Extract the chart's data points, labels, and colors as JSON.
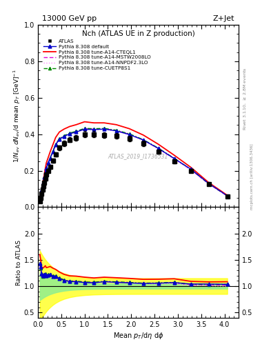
{
  "title": "Nch (ATLAS UE in Z production)",
  "header_left": "13000 GeV pp",
  "header_right": "Z+Jet",
  "watermark": "ATLAS_2019_I1736531",
  "xlabel": "Mean $p_T$/d$\\eta$ d$\\phi$",
  "ylabel_main": "$1/N_{ev}$ $dN_{ev}$/d mean $p_T$ [GeV]$^{-1}$",
  "ylabel_ratio": "Ratio to ATLAS",
  "right_label": "Rivet 3.1.10, $\\geq$ 2.8M events",
  "right_label2": "mcplots.cern.ch [arXiv:1306.3436]",
  "ylim_main": [
    0.0,
    1.0
  ],
  "ylim_ratio": [
    0.4,
    2.5
  ],
  "xlim": [
    0.0,
    4.3
  ],
  "atlas_x": [
    0.04,
    0.06,
    0.08,
    0.1,
    0.12,
    0.14,
    0.16,
    0.18,
    0.22,
    0.26,
    0.32,
    0.38,
    0.46,
    0.56,
    0.68,
    0.82,
    1.0,
    1.2,
    1.42,
    1.68,
    1.96,
    2.26,
    2.58,
    2.92,
    3.28,
    3.66,
    4.06
  ],
  "atlas_y": [
    0.03,
    0.05,
    0.075,
    0.095,
    0.115,
    0.135,
    0.155,
    0.18,
    0.2,
    0.22,
    0.255,
    0.29,
    0.325,
    0.35,
    0.37,
    0.38,
    0.4,
    0.4,
    0.395,
    0.39,
    0.375,
    0.35,
    0.305,
    0.25,
    0.2,
    0.125,
    0.06
  ],
  "default_x": [
    0.04,
    0.06,
    0.08,
    0.1,
    0.12,
    0.14,
    0.16,
    0.18,
    0.22,
    0.26,
    0.32,
    0.38,
    0.46,
    0.56,
    0.68,
    0.82,
    1.0,
    1.2,
    1.42,
    1.68,
    1.96,
    2.26,
    2.58,
    2.92,
    3.28,
    3.66,
    4.06
  ],
  "default_y": [
    0.043,
    0.068,
    0.093,
    0.115,
    0.138,
    0.165,
    0.19,
    0.215,
    0.242,
    0.268,
    0.303,
    0.342,
    0.372,
    0.388,
    0.402,
    0.412,
    0.427,
    0.425,
    0.428,
    0.418,
    0.398,
    0.368,
    0.322,
    0.267,
    0.208,
    0.13,
    0.062
  ],
  "cteq_x": [
    0.04,
    0.06,
    0.08,
    0.1,
    0.12,
    0.14,
    0.16,
    0.18,
    0.22,
    0.26,
    0.32,
    0.38,
    0.46,
    0.56,
    0.68,
    0.82,
    1.0,
    1.2,
    1.42,
    1.68,
    1.96,
    2.26,
    2.58,
    2.92,
    3.28,
    3.66,
    4.06
  ],
  "cteq_y": [
    0.048,
    0.075,
    0.102,
    0.128,
    0.155,
    0.185,
    0.215,
    0.243,
    0.272,
    0.302,
    0.342,
    0.382,
    0.412,
    0.428,
    0.442,
    0.452,
    0.468,
    0.462,
    0.462,
    0.452,
    0.43,
    0.395,
    0.345,
    0.285,
    0.218,
    0.135,
    0.065
  ],
  "mstw_x": [
    0.04,
    0.06,
    0.08,
    0.1,
    0.12,
    0.14,
    0.16,
    0.18,
    0.22,
    0.26,
    0.32,
    0.38,
    0.46,
    0.56,
    0.68,
    0.82,
    1.0,
    1.2,
    1.42,
    1.68,
    1.96,
    2.26,
    2.58,
    2.92,
    3.28,
    3.66,
    4.06
  ],
  "mstw_y": [
    0.042,
    0.066,
    0.091,
    0.112,
    0.136,
    0.162,
    0.19,
    0.215,
    0.242,
    0.268,
    0.304,
    0.344,
    0.374,
    0.39,
    0.405,
    0.415,
    0.43,
    0.428,
    0.43,
    0.42,
    0.4,
    0.368,
    0.322,
    0.266,
    0.205,
    0.128,
    0.061
  ],
  "nnpdf_x": [
    0.04,
    0.06,
    0.08,
    0.1,
    0.12,
    0.14,
    0.16,
    0.18,
    0.22,
    0.26,
    0.32,
    0.38,
    0.46,
    0.56,
    0.68,
    0.82,
    1.0,
    1.2,
    1.42,
    1.68,
    1.96,
    2.26,
    2.58,
    2.92,
    3.28,
    3.66,
    4.06
  ],
  "nnpdf_y": [
    0.041,
    0.064,
    0.089,
    0.11,
    0.133,
    0.159,
    0.187,
    0.212,
    0.239,
    0.265,
    0.3,
    0.34,
    0.37,
    0.386,
    0.4,
    0.41,
    0.426,
    0.424,
    0.426,
    0.416,
    0.396,
    0.365,
    0.318,
    0.263,
    0.202,
    0.126,
    0.06
  ],
  "cuetp_x": [
    0.04,
    0.06,
    0.08,
    0.1,
    0.12,
    0.14,
    0.16,
    0.18,
    0.22,
    0.26,
    0.32,
    0.38,
    0.46,
    0.56,
    0.68,
    0.82,
    1.0,
    1.2,
    1.42,
    1.68,
    1.96,
    2.26,
    2.58,
    2.92,
    3.28,
    3.66,
    4.06
  ],
  "cuetp_y": [
    0.043,
    0.067,
    0.093,
    0.113,
    0.137,
    0.163,
    0.191,
    0.217,
    0.244,
    0.27,
    0.306,
    0.346,
    0.376,
    0.392,
    0.406,
    0.416,
    0.432,
    0.43,
    0.432,
    0.422,
    0.402,
    0.37,
    0.324,
    0.268,
    0.207,
    0.129,
    0.062
  ],
  "colors": {
    "atlas": "#000000",
    "default": "#0000cc",
    "cteq": "#ff0000",
    "mstw": "#dd00dd",
    "nnpdf": "#ff88ff",
    "cuetp": "#008800"
  },
  "yticks_main": [
    0.0,
    0.2,
    0.4,
    0.6,
    0.8,
    1.0
  ],
  "yticks_ratio": [
    0.5,
    1.0,
    1.5,
    2.0
  ]
}
